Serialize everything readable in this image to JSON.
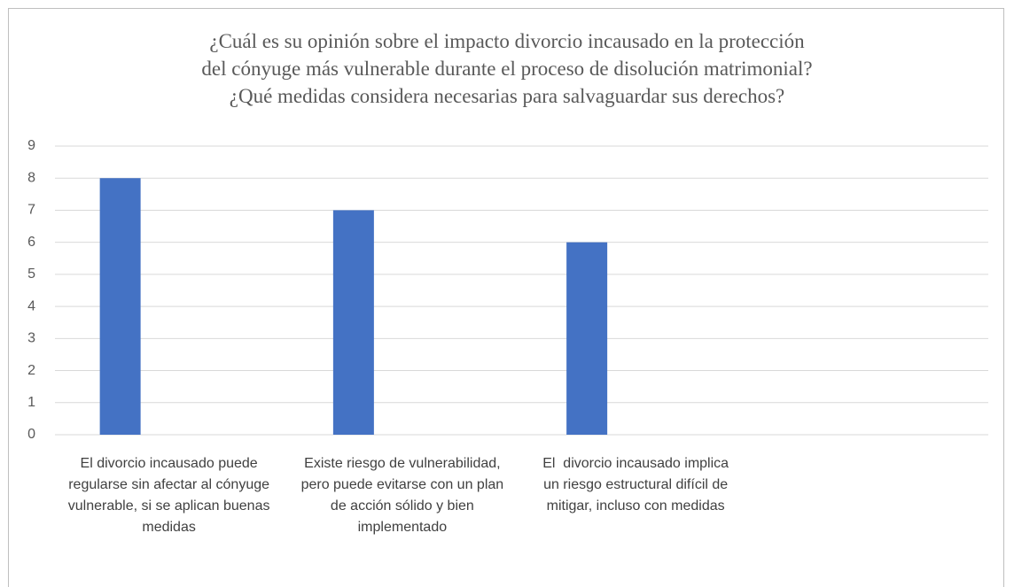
{
  "chart_data": {
    "type": "bar",
    "title": [
      "¿Cuál es su opinión sobre el impacto divorcio incausado en la protección",
      "del cónyuge más vulnerable durante el proceso de disolución matrimonial?",
      "¿Qué medidas considera necesarias para salvaguardar sus derechos?"
    ],
    "categories": [
      "El divorcio incausado puede regularse sin afectar al cónyuge vulnerable, si se aplican buenas medidas",
      "Existe riesgo de vulnerabilidad, pero puede evitarse con un plan de acción sólido y bien implementado",
      "El  divorcio incausado implica un riesgo estructural difícil de mitigar, incluso con medidas",
      null
    ],
    "values": [
      8,
      7,
      6,
      null
    ],
    "color": "#4472c4",
    "ylim": [
      0,
      9
    ],
    "yticks": [
      0,
      1,
      2,
      3,
      4,
      5,
      6,
      7,
      8,
      9
    ],
    "grid": true
  }
}
